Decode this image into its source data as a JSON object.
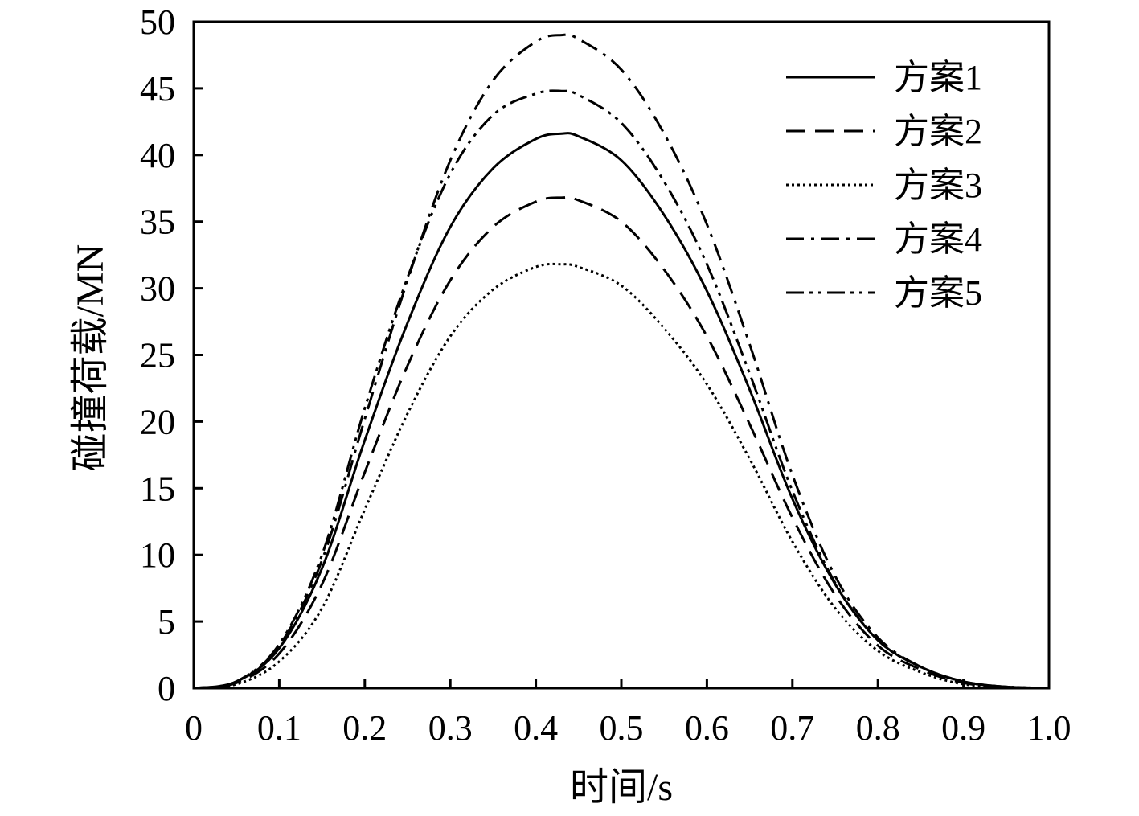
{
  "chart_data": {
    "type": "line",
    "title": "",
    "xlabel": "时间/s",
    "ylabel": "碰撞荷载/MN",
    "xlim": [
      0,
      1.0
    ],
    "ylim": [
      0,
      50
    ],
    "xticks": [
      "0",
      "0.1",
      "0.2",
      "0.3",
      "0.4",
      "0.5",
      "0.6",
      "0.7",
      "0.8",
      "0.9",
      "1.0"
    ],
    "yticks": [
      "0",
      "5",
      "10",
      "15",
      "20",
      "25",
      "30",
      "35",
      "40",
      "45",
      "50"
    ],
    "grid": false,
    "legend_position": "top-right",
    "x": [
      0,
      0.05,
      0.1,
      0.15,
      0.2,
      0.25,
      0.3,
      0.35,
      0.4,
      0.43,
      0.45,
      0.5,
      0.55,
      0.6,
      0.65,
      0.7,
      0.75,
      0.8,
      0.85,
      0.9,
      0.95,
      1.0
    ],
    "series": [
      {
        "name": "方案1",
        "dash": "solid",
        "values": [
          0,
          0.5,
          3.0,
          9.0,
          18.6,
          27.4,
          34.6,
          39.0,
          41.2,
          41.6,
          41.4,
          39.6,
          35.5,
          29.8,
          22.4,
          14.2,
          7.8,
          3.6,
          1.6,
          0.5,
          0.1,
          0
        ]
      },
      {
        "name": "方案2",
        "dash": "dashed",
        "values": [
          0,
          0.4,
          2.6,
          7.8,
          16.2,
          24.2,
          30.6,
          34.6,
          36.5,
          36.8,
          36.6,
          35.0,
          31.4,
          26.4,
          19.8,
          12.8,
          7.0,
          3.2,
          1.4,
          0.4,
          0.1,
          0
        ]
      },
      {
        "name": "方案3",
        "dash": "dotted",
        "values": [
          0,
          0.3,
          2.0,
          6.0,
          13.4,
          20.6,
          26.4,
          29.9,
          31.6,
          31.8,
          31.6,
          30.2,
          27.0,
          22.8,
          17.2,
          11.0,
          6.0,
          2.8,
          1.2,
          0.3,
          0.1,
          0
        ]
      },
      {
        "name": "方案4",
        "dash": "dash-dot",
        "values": [
          0,
          0.5,
          3.2,
          9.6,
          20.2,
          30.6,
          39.6,
          45.6,
          48.5,
          49.0,
          48.7,
          46.4,
          41.6,
          34.8,
          25.8,
          16.0,
          8.4,
          3.8,
          1.6,
          0.5,
          0.1,
          0
        ]
      },
      {
        "name": "方案5",
        "dash": "dash-dot-dot",
        "values": [
          0,
          0.5,
          3.3,
          10.0,
          21.0,
          30.8,
          38.6,
          43.0,
          44.6,
          44.8,
          44.5,
          42.4,
          38.0,
          31.8,
          23.6,
          14.8,
          7.9,
          3.6,
          1.6,
          0.5,
          0.1,
          0
        ]
      }
    ]
  }
}
